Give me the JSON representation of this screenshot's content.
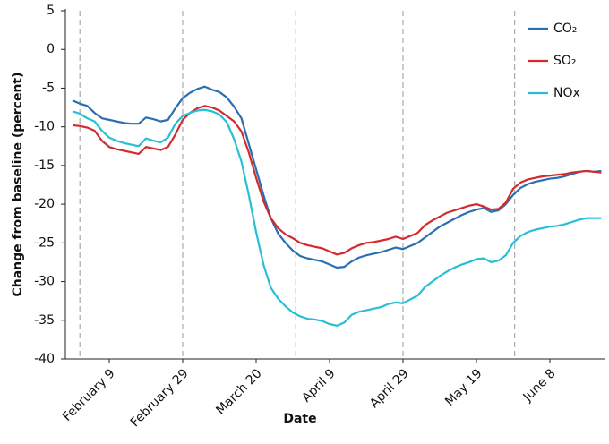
{
  "chart_data": {
    "type": "line",
    "y_label": "Change from baseline (percent)",
    "x_label": "Date",
    "categories": [
      null,
      null,
      null,
      null,
      null,
      "February 9",
      null,
      null,
      null,
      null,
      null,
      null,
      null,
      null,
      null,
      "February 29",
      null,
      null,
      null,
      null,
      null,
      null,
      null,
      null,
      null,
      "March 20",
      null,
      null,
      null,
      null,
      null,
      null,
      null,
      null,
      null,
      "April 9",
      null,
      null,
      null,
      null,
      null,
      null,
      null,
      null,
      null,
      "April 29",
      null,
      null,
      null,
      null,
      null,
      null,
      null,
      null,
      null,
      "May 19",
      null,
      null,
      null,
      null,
      null,
      null,
      null,
      null,
      null,
      "June 8",
      null,
      null,
      null,
      null,
      null,
      null,
      null
    ],
    "series": [
      {
        "name": "CO₂",
        "color": "#2a6fb0",
        "values": [
          -6.6,
          -7.0,
          -7.3,
          -8.2,
          -8.9,
          -9.1,
          -9.3,
          -9.5,
          -9.6,
          -9.6,
          -8.8,
          -9.0,
          -9.3,
          -9.1,
          -7.6,
          -6.3,
          -5.6,
          -5.1,
          -4.8,
          -5.2,
          -5.5,
          -6.2,
          -7.4,
          -8.9,
          -12.2,
          -15.5,
          -18.8,
          -21.8,
          -23.8,
          -25.0,
          -26.0,
          -26.7,
          -27.0,
          -27.2,
          -27.4,
          -27.8,
          -28.2,
          -28.1,
          -27.4,
          -26.9,
          -26.6,
          -26.4,
          -26.2,
          -25.9,
          -25.6,
          -25.8,
          -25.4,
          -25.0,
          -24.3,
          -23.6,
          -22.9,
          -22.4,
          -21.9,
          -21.4,
          -21.0,
          -20.7,
          -20.5,
          -21.0,
          -20.8,
          -20.0,
          -18.8,
          -17.9,
          -17.4,
          -17.1,
          -16.9,
          -16.7,
          -16.6,
          -16.4,
          -16.1,
          -15.8,
          -15.7,
          -15.8,
          -15.7
        ]
      },
      {
        "name": "SO₂",
        "color": "#d42a2f",
        "values": [
          -9.8,
          -9.9,
          -10.1,
          -10.5,
          -11.8,
          -12.6,
          -12.9,
          -13.1,
          -13.3,
          -13.5,
          -12.6,
          -12.8,
          -13.0,
          -12.6,
          -11.0,
          -9.1,
          -8.2,
          -7.6,
          -7.3,
          -7.5,
          -7.9,
          -8.6,
          -9.3,
          -10.6,
          -13.3,
          -16.6,
          -19.6,
          -21.8,
          -23.1,
          -23.9,
          -24.4,
          -25.0,
          -25.3,
          -25.5,
          -25.7,
          -26.1,
          -26.5,
          -26.3,
          -25.7,
          -25.3,
          -25.0,
          -24.9,
          -24.7,
          -24.5,
          -24.2,
          -24.5,
          -24.1,
          -23.7,
          -22.7,
          -22.1,
          -21.6,
          -21.1,
          -20.8,
          -20.5,
          -20.2,
          -20.0,
          -20.3,
          -20.7,
          -20.6,
          -19.8,
          -18.0,
          -17.2,
          -16.8,
          -16.6,
          -16.4,
          -16.3,
          -16.2,
          -16.1,
          -15.9,
          -15.8,
          -15.7,
          -15.8,
          -15.9
        ]
      },
      {
        "name": "NOx",
        "color": "#27bfd6",
        "values": [
          -8.0,
          -8.3,
          -8.9,
          -9.3,
          -10.5,
          -11.4,
          -11.8,
          -12.1,
          -12.3,
          -12.5,
          -11.5,
          -11.8,
          -12.0,
          -11.4,
          -9.6,
          -8.6,
          -8.2,
          -7.9,
          -7.8,
          -8.0,
          -8.4,
          -9.4,
          -11.6,
          -14.5,
          -18.8,
          -23.6,
          -27.8,
          -30.8,
          -32.2,
          -33.2,
          -34.0,
          -34.5,
          -34.8,
          -34.9,
          -35.1,
          -35.5,
          -35.7,
          -35.3,
          -34.3,
          -33.9,
          -33.7,
          -33.5,
          -33.3,
          -32.9,
          -32.7,
          -32.8,
          -32.3,
          -31.8,
          -30.7,
          -30.0,
          -29.3,
          -28.7,
          -28.2,
          -27.8,
          -27.5,
          -27.1,
          -27.0,
          -27.5,
          -27.3,
          -26.6,
          -25.0,
          -24.1,
          -23.6,
          -23.3,
          -23.1,
          -22.9,
          -22.8,
          -22.6,
          -22.3,
          -22.0,
          -21.8,
          -21.8,
          -21.8
        ]
      }
    ],
    "ylim": [
      -40,
      5
    ],
    "yticks": [
      -40,
      -35,
      -30,
      -25,
      -20,
      -15,
      -10,
      -5,
      0,
      5
    ],
    "grid": false,
    "legend": "top-right"
  }
}
